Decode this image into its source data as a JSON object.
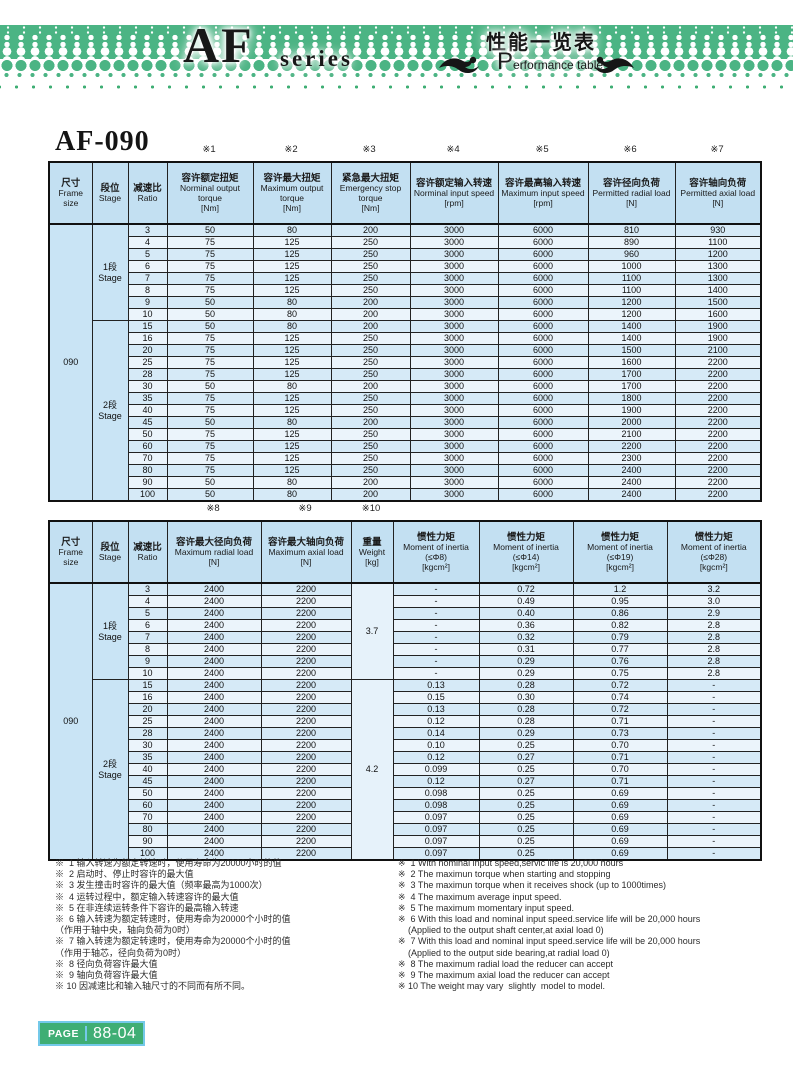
{
  "banner": {
    "series_name": "AF",
    "series_word": "series",
    "title_cn": "性能一览表",
    "perf_initial": "P",
    "perf_rest": "erformance table"
  },
  "page": {
    "model": "AF-090",
    "page_label": "PAGE",
    "page_number": "88-04"
  },
  "colors": {
    "banner_green": "#4bb484",
    "header_blue": "#c3e0f2",
    "row_blue": "#d6eaf7",
    "badge_border_blue": "#74c9e9"
  },
  "table1": {
    "ref_marks": [
      "※1",
      "※2",
      "※3",
      "※4",
      "※5",
      "※6",
      "※7"
    ],
    "headers": [
      {
        "cn": "尺寸",
        "en": "Frame size"
      },
      {
        "cn": "段位",
        "en": "Stage"
      },
      {
        "cn": "减速比",
        "en": "Ratio"
      },
      {
        "cn": "容许额定扭矩",
        "en": "Norminal output torque",
        "unit": "[Nm]"
      },
      {
        "cn": "容许最大扭矩",
        "en": "Maximum output torque",
        "unit": "[Nm]"
      },
      {
        "cn": "紧急最大扭矩",
        "en": "Emergency stop torque",
        "unit": "[Nm]"
      },
      {
        "cn": "容许额定输入转速",
        "en": "Norminal input speed",
        "unit": "[rpm]"
      },
      {
        "cn": "容许最高输入转速",
        "en": "Maximum input speed",
        "unit": "[rpm]"
      },
      {
        "cn": "容许径向负荷",
        "en": "Permitted radial load",
        "unit": "[N]"
      },
      {
        "cn": "容许轴向负荷",
        "en": "Permitted axial load",
        "unit": "[N]"
      }
    ],
    "frame_size": "090",
    "stage1": {
      "cn": "1段",
      "en": "Stage"
    },
    "stage2": {
      "cn": "2段",
      "en": "Stage"
    },
    "stage1_rows": [
      [
        "3",
        "50",
        "80",
        "200",
        "3000",
        "6000",
        "810",
        "930"
      ],
      [
        "4",
        "75",
        "125",
        "250",
        "3000",
        "6000",
        "890",
        "1100"
      ],
      [
        "5",
        "75",
        "125",
        "250",
        "3000",
        "6000",
        "960",
        "1200"
      ],
      [
        "6",
        "75",
        "125",
        "250",
        "3000",
        "6000",
        "1000",
        "1300"
      ],
      [
        "7",
        "75",
        "125",
        "250",
        "3000",
        "6000",
        "1100",
        "1300"
      ],
      [
        "8",
        "75",
        "125",
        "250",
        "3000",
        "6000",
        "1100",
        "1400"
      ],
      [
        "9",
        "50",
        "80",
        "200",
        "3000",
        "6000",
        "1200",
        "1500"
      ],
      [
        "10",
        "50",
        "80",
        "200",
        "3000",
        "6000",
        "1200",
        "1600"
      ]
    ],
    "stage2_rows": [
      [
        "15",
        "50",
        "80",
        "200",
        "3000",
        "6000",
        "1400",
        "1900"
      ],
      [
        "16",
        "75",
        "125",
        "250",
        "3000",
        "6000",
        "1400",
        "1900"
      ],
      [
        "20",
        "75",
        "125",
        "250",
        "3000",
        "6000",
        "1500",
        "2100"
      ],
      [
        "25",
        "75",
        "125",
        "250",
        "3000",
        "6000",
        "1600",
        "2200"
      ],
      [
        "28",
        "75",
        "125",
        "250",
        "3000",
        "6000",
        "1700",
        "2200"
      ],
      [
        "30",
        "50",
        "80",
        "200",
        "3000",
        "6000",
        "1700",
        "2200"
      ],
      [
        "35",
        "75",
        "125",
        "250",
        "3000",
        "6000",
        "1800",
        "2200"
      ],
      [
        "40",
        "75",
        "125",
        "250",
        "3000",
        "6000",
        "1900",
        "2200"
      ],
      [
        "45",
        "50",
        "80",
        "200",
        "3000",
        "6000",
        "2000",
        "2200"
      ],
      [
        "50",
        "75",
        "125",
        "250",
        "3000",
        "6000",
        "2100",
        "2200"
      ],
      [
        "60",
        "75",
        "125",
        "250",
        "3000",
        "6000",
        "2200",
        "2200"
      ],
      [
        "70",
        "75",
        "125",
        "250",
        "3000",
        "6000",
        "2300",
        "2200"
      ],
      [
        "80",
        "75",
        "125",
        "250",
        "3000",
        "6000",
        "2400",
        "2200"
      ],
      [
        "90",
        "50",
        "80",
        "200",
        "3000",
        "6000",
        "2400",
        "2200"
      ],
      [
        "100",
        "50",
        "80",
        "200",
        "3000",
        "6000",
        "2400",
        "2200"
      ]
    ]
  },
  "table2": {
    "ref_marks": [
      "※8",
      "※9",
      "※10"
    ],
    "headers": [
      {
        "cn": "尺寸",
        "en": "Frame size"
      },
      {
        "cn": "段位",
        "en": "Stage"
      },
      {
        "cn": "减速比",
        "en": "Ratio"
      },
      {
        "cn": "容许最大径向负荷",
        "en": "Maximum radial load",
        "unit": "[N]"
      },
      {
        "cn": "容许最大轴向负荷",
        "en": "Maximum axial load",
        "unit": "[N]"
      },
      {
        "cn": "重量",
        "en": "Weight",
        "unit": "[kg]"
      },
      {
        "cn": "惯性力矩",
        "en": "Moment of inertia",
        "sub": "(≤Φ8)",
        "unit": "[kgcm²]"
      },
      {
        "cn": "惯性力矩",
        "en": "Moment of inertia",
        "sub": "(≤Φ14)",
        "unit": "[kgcm²]"
      },
      {
        "cn": "惯性力矩",
        "en": "Moment of inertia",
        "sub": "(≤Φ19)",
        "unit": "[kgcm²]"
      },
      {
        "cn": "惯性力矩",
        "en": "Moment of inertia",
        "sub": "(≤Φ28)",
        "unit": "[kgcm²]"
      }
    ],
    "frame_size": "090",
    "stage1": {
      "cn": "1段",
      "en": "Stage"
    },
    "stage2": {
      "cn": "2段",
      "en": "Stage"
    },
    "stage1_weight": "3.7",
    "stage2_weight": "4.2",
    "stage1_rows": [
      [
        "3",
        "2400",
        "2200",
        "-",
        "0.72",
        "1.2",
        "3.2"
      ],
      [
        "4",
        "2400",
        "2200",
        "-",
        "0.49",
        "0.95",
        "3.0"
      ],
      [
        "5",
        "2400",
        "2200",
        "-",
        "0.40",
        "0.86",
        "2.9"
      ],
      [
        "6",
        "2400",
        "2200",
        "-",
        "0.36",
        "0.82",
        "2.8"
      ],
      [
        "7",
        "2400",
        "2200",
        "-",
        "0.32",
        "0.79",
        "2.8"
      ],
      [
        "8",
        "2400",
        "2200",
        "-",
        "0.31",
        "0.77",
        "2.8"
      ],
      [
        "9",
        "2400",
        "2200",
        "-",
        "0.29",
        "0.76",
        "2.8"
      ],
      [
        "10",
        "2400",
        "2200",
        "-",
        "0.29",
        "0.75",
        "2.8"
      ]
    ],
    "stage2_rows": [
      [
        "15",
        "2400",
        "2200",
        "0.13",
        "0.28",
        "0.72",
        "-"
      ],
      [
        "16",
        "2400",
        "2200",
        "0.15",
        "0.30",
        "0.74",
        "-"
      ],
      [
        "20",
        "2400",
        "2200",
        "0.13",
        "0.28",
        "0.72",
        "-"
      ],
      [
        "25",
        "2400",
        "2200",
        "0.12",
        "0.28",
        "0.71",
        "-"
      ],
      [
        "28",
        "2400",
        "2200",
        "0.14",
        "0.29",
        "0.73",
        "-"
      ],
      [
        "30",
        "2400",
        "2200",
        "0.10",
        "0.25",
        "0.70",
        "-"
      ],
      [
        "35",
        "2400",
        "2200",
        "0.12",
        "0.27",
        "0.71",
        "-"
      ],
      [
        "40",
        "2400",
        "2200",
        "0.099",
        "0.25",
        "0.70",
        "-"
      ],
      [
        "45",
        "2400",
        "2200",
        "0.12",
        "0.27",
        "0.71",
        "-"
      ],
      [
        "50",
        "2400",
        "2200",
        "0.098",
        "0.25",
        "0.69",
        "-"
      ],
      [
        "60",
        "2400",
        "2200",
        "0.098",
        "0.25",
        "0.69",
        "-"
      ],
      [
        "70",
        "2400",
        "2200",
        "0.097",
        "0.25",
        "0.69",
        "-"
      ],
      [
        "80",
        "2400",
        "2200",
        "0.097",
        "0.25",
        "0.69",
        "-"
      ],
      [
        "90",
        "2400",
        "2200",
        "0.097",
        "0.25",
        "0.69",
        "-"
      ],
      [
        "100",
        "2400",
        "2200",
        "0.097",
        "0.25",
        "0.69",
        "-"
      ]
    ]
  },
  "footnotes_cn": [
    "※  1 输入转速为额定转速时，使用寿命为20000小时的值",
    "※  2 启动时、停止时容许的最大值",
    "※  3 发生撞击时容许的最大值（频率最高为1000次）",
    "※  4 运转过程中，额定输入转速容许的最大值",
    "※  5 在非连续运转条件下容许的最高输入转速",
    "※  6 输入转速为额定转速时，使用寿命为20000个小时的值\n（作用于轴中央，轴向负荷为0时）",
    "※  7 输入转速为额定转速时，使用寿命为20000个小时的值\n（作用于轴芯，径向负荷为0时）",
    "※  8 径向负荷容许最大值",
    "※  9 轴向负荷容许最大值",
    "※ 10 因减速比和输入轴尺寸的不同而有所不同。"
  ],
  "footnotes_en": [
    "※  1 With nominal input speed,servic life is 20,000 hours",
    "※  2 The maximun torque when starting and stopping",
    "※  3 The maximun torque when it receives shock (up to 1000times)",
    "※  4 The maximum average input speed.",
    "※  5 The maximum momentary input speed.",
    "※  6 With this load and nominal input speed.service life will be 20,000 hours\n    (Applied to the output shaft center,at axial load 0)",
    "※  7 With this load and nominal input speed.service life will be 20,000 hours\n    (Applied to the output side bearing,at radial load 0)",
    "※  8 The maximum radial load the reducer can accept",
    "※  9 The maximum axial load the reducer can accept",
    "※ 10 The weight may vary  slightly  model to model."
  ]
}
